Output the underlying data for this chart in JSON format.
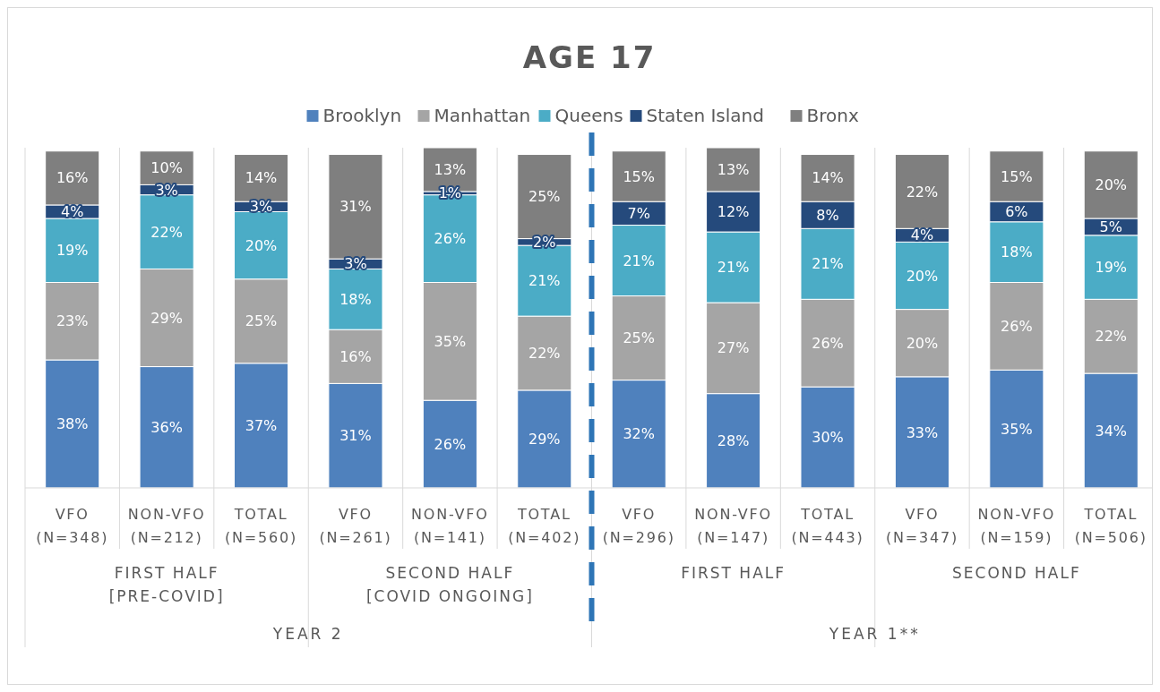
{
  "chart_data": {
    "type": "bar",
    "stacked": true,
    "title": "AGE 17",
    "legend": "top",
    "categories": [
      "VFO (N=348)",
      "NON-VFO (N=212)",
      "TOTAL (N=560)",
      "VFO (N=261)",
      "NON-VFO (N=141)",
      "TOTAL (N=402)",
      "VFO (N=296)",
      "NON-VFO (N=147)",
      "TOTAL (N=443)",
      "VFO (N=347)",
      "NON-VFO (N=159)",
      "TOTAL (N=506)"
    ],
    "series": [
      {
        "name": "Brooklyn",
        "color": "#4f81bd",
        "values": [
          38,
          36,
          37,
          31,
          26,
          29,
          32,
          28,
          30,
          33,
          35,
          34
        ],
        "value_labels": [
          "38%",
          "36%",
          "37%",
          "31%",
          "26%",
          "29%",
          "32%",
          "28%",
          "30%",
          "33%",
          "35%",
          "34%"
        ]
      },
      {
        "name": "Manhattan",
        "color": "#a5a5a5",
        "values": [
          23,
          29,
          25,
          16,
          35,
          22,
          25,
          27,
          26,
          20,
          26,
          22
        ],
        "value_labels": [
          "23%",
          "29%",
          "25%",
          "16%",
          "35%",
          "22%",
          "25%",
          "27%",
          "26%",
          "20%",
          "26%",
          "22%"
        ]
      },
      {
        "name": "Queens",
        "color": "#4bacc6",
        "values": [
          19,
          22,
          20,
          18,
          26,
          21,
          21,
          21,
          21,
          20,
          18,
          19
        ],
        "value_labels": [
          "19%",
          "22%",
          "20%",
          "18%",
          "26%",
          "21%",
          "21%",
          "21%",
          "21%",
          "20%",
          "18%",
          "19%"
        ]
      },
      {
        "name": "Staten Island",
        "color": "#254a7c",
        "values": [
          4,
          3,
          3,
          3,
          1,
          2,
          7,
          12,
          8,
          4,
          6,
          5
        ],
        "value_labels": [
          "4%",
          "3%",
          "3%",
          "3%",
          "1%",
          "2%",
          "7%",
          "12%",
          "8%",
          "4%",
          "6%",
          "5%"
        ]
      },
      {
        "name": "Bronx",
        "color": "#7f7f7f",
        "values": [
          16,
          10,
          14,
          31,
          13,
          25,
          15,
          13,
          14,
          22,
          15,
          20
        ],
        "value_labels": [
          "16%",
          "10%",
          "14%",
          "31%",
          "13%",
          "25%",
          "15%",
          "13%",
          "14%",
          "22%",
          "15%",
          "20%"
        ]
      }
    ],
    "annotations": [
      "FIRST HALF [PRE-COVID]",
      "SECOND HALF [COVID ONGOING]",
      "FIRST HALF",
      "SECOND HALF",
      "YEAR 2",
      "YEAR 1**"
    ]
  }
}
